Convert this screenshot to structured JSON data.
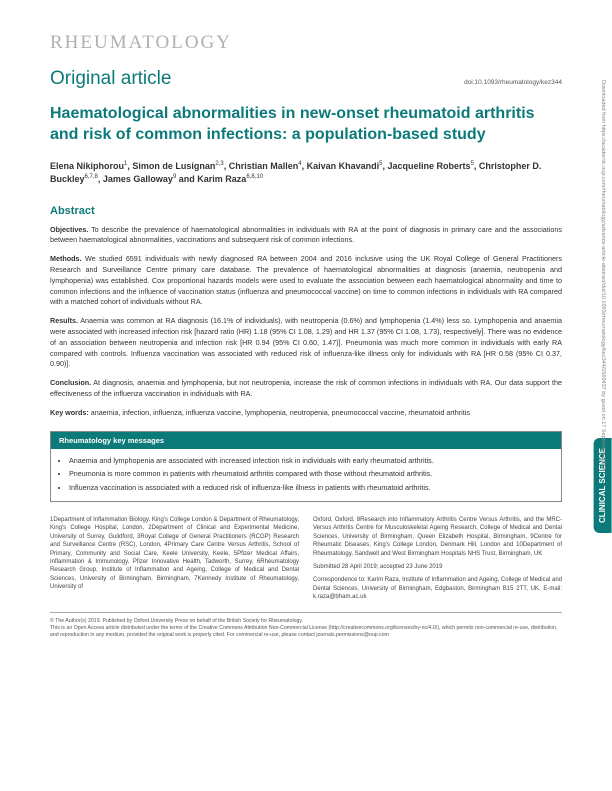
{
  "journal": "RHEUMATOLOGY",
  "article_type": "Original article",
  "doi": "doi:10.1093/rheumatology/kez344",
  "title": "Haematological abnormalities in new-onset rheumatoid arthritis and risk of common infections: a population-based study",
  "authors_html": "Elena Nikiphorou<sup>1</sup>, Simon de Lusignan<sup>2,3</sup>, Christian Mallen<sup>4</sup>, Kaivan Khavandi<sup>5</sup>, Jacqueline Roberts<sup>5</sup>, Christopher D. Buckley<sup>6,7,8</sup>, James Galloway<sup>9</sup> and Karim Raza<sup>6,8,10</sup>",
  "abstract_heading": "Abstract",
  "abstract": {
    "objectives": {
      "label": "Objectives.",
      "text": "To describe the prevalence of haematological abnormalities in individuals with RA at the point of diagnosis in primary care and the associations between haematological abnormalities, vaccinations and subsequent risk of common infections."
    },
    "methods": {
      "label": "Methods.",
      "text": "We studied 6591 individuals with newly diagnosed RA between 2004 and 2016 inclusive using the UK Royal College of General Practitioners Research and Surveillance Centre primary care database. The prevalence of haematological abnormalities at diagnosis (anaemia, neutropenia and lymphopenia) was established. Cox proportional hazards models were used to evaluate the association between each haematological abnormality and time to common infections and the influence of vaccination status (influenza and pneumococcal vaccine) on time to common infections in individuals with RA compared with a matched cohort of individuals without RA."
    },
    "results": {
      "label": "Results.",
      "text": "Anaemia was common at RA diagnosis (16.1% of individuals), with neutropenia (0.6%) and lymphopenia (1.4%) less so. Lymphopenia and anaemia were associated with increased infection risk [hazard ratio (HR) 1.18 (95% CI 1.08, 1.29) and HR 1.37 (95% CI 1.08, 1.73), respectively]. There was no evidence of an association between neutropenia and infection risk [HR 0.94 (95% CI 0.60, 1.47)]. Pneumonia was much more common in individuals with early RA compared with controls. Influenza vaccination was associated with reduced risk of influenza-like illness only for individuals with RA [HR 0.58 (95% CI 0.37, 0.90)]."
    },
    "conclusion": {
      "label": "Conclusion.",
      "text": "At diagnosis, anaemia and lymphopenia, but not neutropenia, increase the risk of common infections in individuals with RA. Our data support the effectiveness of the influenza vaccination in individuals with RA."
    }
  },
  "keywords": {
    "label": "Key words:",
    "text": "anaemia, infection, influenza, influenza vaccine, lymphopenia, neutropenia, pneumococcal vaccine, rheumatoid arthritis"
  },
  "key_messages": {
    "header": "Rheumatology key messages",
    "items": [
      "Anaemia and lymphopenia are associated with increased infection risk in individuals with early rheumatoid arthritis.",
      "Pneumonia is more common in patients with rheumatoid arthritis compared with those without rheumatoid arthritis.",
      "Influenza vaccination is associated with a reduced risk of influenza-like illness in patients with rheumatoid arthritis."
    ]
  },
  "affiliations": {
    "col1": "1Department of Inflammation Biology, King's College London & Department of Rheumatology, King's College Hospital, London, 2Department of Clinical and Experimental Medicine, University of Surrey, Guildford, 3Royal College of General Practitioners (RCGP) Research and Surveillance Centre (RSC), London, 4Primary Care Centre Versus Arthritis, School of Primary, Community and Social Care, Keele University, Keele, 5Pfizer Medical Affairs, Inflammation & Immunology, Pfizer Innovative Health, Tadworth, Surrey, 6Rheumatology Research Group, Institute of Inflammation and Ageing, College of Medical and Dental Sciences, University of Birmingham, Birmingham, 7Kennedy Institute of Rheumatology, University of",
    "col2": "Oxford, Oxford, 8Research into Inflammatory Arthritis Centre Versus Arthritis, and the MRC-Versus Arthritis Centre for Musculoskeletal Ageing Research, College of Medical and Dental Sciences, University of Birmingham, Queen Elizabeth Hospital, Birmingham, 9Centre for Rheumatic Diseases, King's College London, Denmark Hill, London and 10Department of Rheumatology, Sandwell and West Birmingham Hospitals NHS Trust, Birmingham, UK",
    "submitted": "Submitted 28 April 2019; accepted 23 June 2019",
    "correspondence": "Correspondence to: Karim Raza, Institute of Inflammation and Ageing, College of Medical and Dental Sciences, University of Birmingham, Edgbaston, Birmingham B15 2TT, UK. E-mail: k.raza@bham.ac.uk"
  },
  "footer": {
    "copyright": "© The Author(s) 2019. Published by Oxford University Press on behalf of the British Society for Rheumatology.",
    "license": "This is an Open Access article distributed under the terms of the Creative Commons Attribution Non-Commercial License (http://creativecommons.org/licenses/by-nc/4.0/), which permits non-commercial re-use, distribution, and reproduction in any medium, provided the original work is properly cited. For commercial re-use, please contact journals.permissions@oup.com"
  },
  "side_tab": "CLINICAL SCIENCE",
  "download_strip": "Downloaded from https://academic.oup.com/rheumatology/advance-article-abstract/doi/10.1093/rheumatology/kez344/5560437 by guest on 17 September 2019",
  "colors": {
    "teal": "#0d7a7a",
    "gray_text": "#b0b0b0",
    "body_text": "#333333"
  }
}
